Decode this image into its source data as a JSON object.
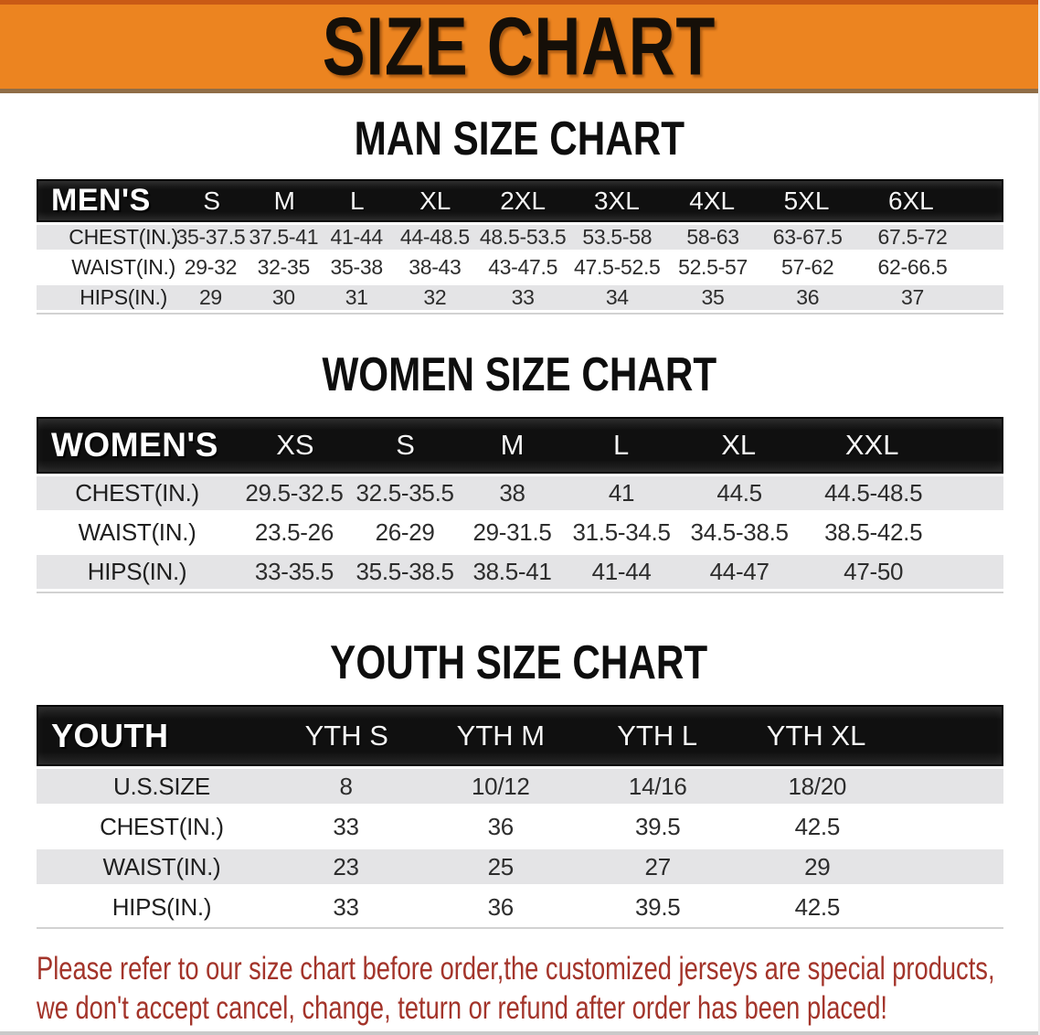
{
  "banner": {
    "title": "SIZE CHART",
    "bg": "#EC8420",
    "accent_top": "#C95A15",
    "accent_bottom": "#8F6D47",
    "text_color": "#150F08"
  },
  "men": {
    "heading": "MAN SIZE CHART",
    "label": "MEN'S",
    "columns": [
      "S",
      "M",
      "L",
      "XL",
      "2XL",
      "3XL",
      "4XL",
      "5XL",
      "6XL"
    ],
    "rows": [
      {
        "label": "CHEST(IN.)",
        "values": [
          "35-37.5",
          "37.5-41",
          "41-44",
          "44-48.5",
          "48.5-53.5",
          "53.5-58",
          "58-63",
          "63-67.5",
          "67.5-72"
        ]
      },
      {
        "label": "WAIST(IN.)",
        "values": [
          "29-32",
          "32-35",
          "35-38",
          "38-43",
          "43-47.5",
          "47.5-52.5",
          "52.5-57",
          "57-62",
          "62-66.5"
        ]
      },
      {
        "label": "HIPS(IN.)",
        "values": [
          "29",
          "30",
          "31",
          "32",
          "33",
          "34",
          "35",
          "36",
          "37"
        ]
      }
    ]
  },
  "women": {
    "heading": "WOMEN SIZE CHART",
    "label": "WOMEN'S",
    "columns": [
      "XS",
      "S",
      "M",
      "L",
      "XL",
      "XXL"
    ],
    "rows": [
      {
        "label": "CHEST(IN.)",
        "values": [
          "29.5-32.5",
          "32.5-35.5",
          "38",
          "41",
          "44.5",
          "44.5-48.5"
        ]
      },
      {
        "label": "WAIST(IN.)",
        "values": [
          "23.5-26",
          "26-29",
          "29-31.5",
          "31.5-34.5",
          "34.5-38.5",
          "38.5-42.5"
        ]
      },
      {
        "label": "HIPS(IN.)",
        "values": [
          "33-35.5",
          "35.5-38.5",
          "38.5-41",
          "41-44",
          "44-47",
          "47-50"
        ]
      }
    ]
  },
  "youth": {
    "heading": "YOUTH SIZE CHART",
    "label": "YOUTH",
    "columns": [
      "YTH S",
      "YTH M",
      "YTH L",
      "YTH XL"
    ],
    "rows": [
      {
        "label": "U.S.SIZE",
        "values": [
          "8",
          "10/12",
          "14/16",
          "18/20"
        ]
      },
      {
        "label": "CHEST(IN.)",
        "values": [
          "33",
          "36",
          "39.5",
          "42.5"
        ]
      },
      {
        "label": "WAIST(IN.)",
        "values": [
          "23",
          "25",
          "27",
          "29"
        ]
      },
      {
        "label": "HIPS(IN.)",
        "values": [
          "33",
          "36",
          "39.5",
          "42.5"
        ]
      }
    ]
  },
  "footer": {
    "line1": "Please refer to our size chart before order,the customized jerseys are special products,",
    "line2": "we don't accept cancel, change, teturn or refund after order has been placed!",
    "color": "#A3342A"
  }
}
